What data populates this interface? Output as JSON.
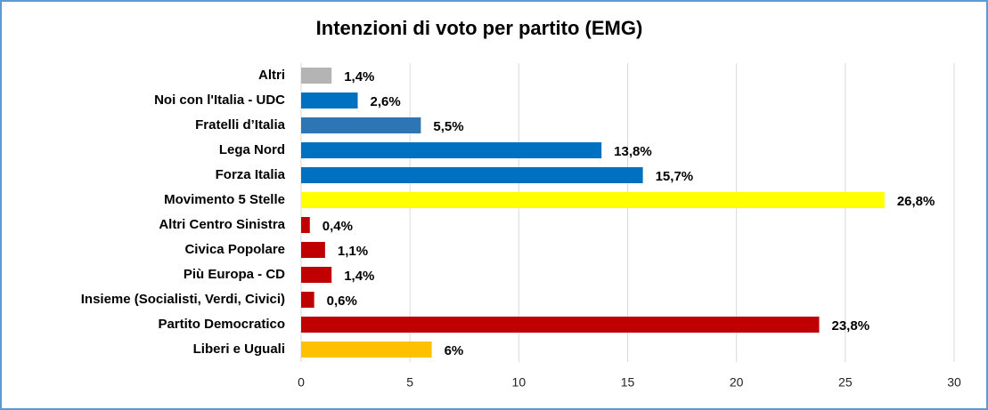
{
  "chart_data": {
    "type": "bar",
    "orientation": "horizontal",
    "title": "Intenzioni di voto per partito (EMG)",
    "categories": [
      "Altri",
      "Noi con l'Italia - UDC",
      "Fratelli d’Italia",
      "Lega Nord",
      "Forza Italia",
      "Movimento 5 Stelle",
      "Altri Centro Sinistra",
      "Civica Popolare",
      "Più Europa - CD",
      "Insieme (Socialisti, Verdi, Civici)",
      "Partito Democratico",
      "Liberi e Uguali"
    ],
    "values": [
      1.4,
      2.6,
      5.5,
      13.8,
      15.7,
      26.8,
      0.4,
      1.1,
      1.4,
      0.6,
      23.8,
      6
    ],
    "value_labels": [
      "1,4%",
      "2,6%",
      "5,5%",
      "13,8%",
      "15,7%",
      "26,8%",
      "0,4%",
      "1,1%",
      "1,4%",
      "0,6%",
      "23,8%",
      "6%"
    ],
    "colors": [
      "#b4b4b4",
      "#0070c0",
      "#2e75b6",
      "#0070c0",
      "#0070c0",
      "#ffff00",
      "#c00000",
      "#c00000",
      "#c00000",
      "#c00000",
      "#c00000",
      "#ffc000"
    ],
    "xlim": [
      0,
      30
    ],
    "xticks": [
      0,
      5,
      10,
      15,
      20,
      25,
      30
    ],
    "grid": true
  }
}
